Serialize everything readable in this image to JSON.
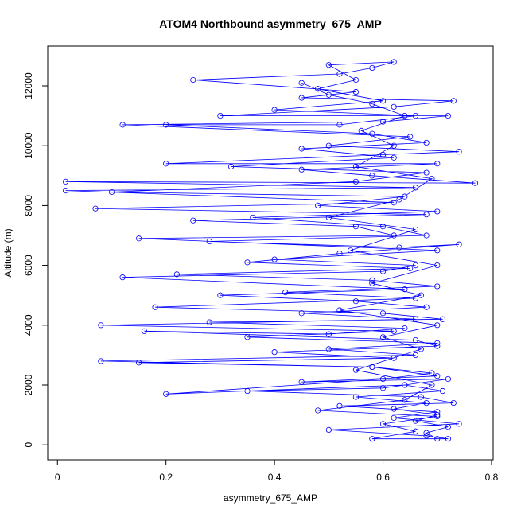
{
  "chart_data": {
    "type": "scatter",
    "title": "ATOM4 Northbound asymmetry_675_AMP",
    "x_label": "asymmetry_675_AMP",
    "y_label": "Altitude (m)",
    "color": "#0000ff",
    "connect": true,
    "xlim": [
      -0.018,
      0.803
    ],
    "xticks": [
      0,
      0.2,
      0.4,
      0.6,
      0.8
    ],
    "ylim": [
      -500,
      13330
    ],
    "yticks": [
      0,
      2000,
      4000,
      6000,
      8000,
      10000,
      12000
    ],
    "x": [
      0.7,
      0.68,
      0.72,
      0.66,
      0.7,
      0.62,
      0.68,
      0.55,
      0.71,
      0.64,
      0.2,
      0.6,
      0.69,
      0.58,
      0.08,
      0.66,
      0.5,
      0.7,
      0.35,
      0.62,
      0.08,
      0.66,
      0.45,
      0.68,
      0.55,
      0.3,
      0.64,
      0.12,
      0.6,
      0.66,
      0.4,
      0.7,
      0.15,
      0.62,
      0.55,
      0.25,
      0.68,
      0.07,
      0.62,
      0.015,
      0.66,
      0.015,
      0.77,
      0.58,
      0.45,
      0.7,
      0.2,
      0.6,
      0.74,
      0.5,
      0.65,
      0.12,
      0.6,
      0.72,
      0.3,
      0.62,
      0.73,
      0.45,
      0.55,
      0.25,
      0.52,
      0.58,
      0.62,
      0.5,
      0.55,
      0.48,
      0.6,
      0.4,
      0.66,
      0.52,
      0.2,
      0.58,
      0.68,
      0.45,
      0.62,
      0.32,
      0.68,
      0.55,
      0.1,
      0.64,
      0.48,
      0.7,
      0.36,
      0.6,
      0.68,
      0.28,
      0.63,
      0.74,
      0.52,
      0.35,
      0.65,
      0.22,
      0.58,
      0.7,
      0.42,
      0.66,
      0.18,
      0.6,
      0.71,
      0.28,
      0.64,
      0.5,
      0.16,
      0.66,
      0.7,
      0.4,
      0.62,
      0.15,
      0.58,
      0.7,
      0.45,
      0.72,
      0.6,
      0.35,
      0.67,
      0.73,
      0.52,
      0.7,
      0.62,
      0.74,
      0.5,
      0.68,
      0.72,
      0.58,
      0.66,
      0.6,
      0.7,
      0.48,
      0.64,
      0.69,
      0.55,
      0.67,
      0.6,
      0.7,
      0.52,
      0.67,
      0.58,
      0.7,
      0.54,
      0.66,
      0.5,
      0.63,
      0.69,
      0.55,
      0.62,
      0.56,
      0.64,
      0.58,
      0.5,
      0.45
    ],
    "values": [
      200,
      400,
      600,
      800,
      1000,
      1200,
      1400,
      1600,
      1800,
      2000,
      1700,
      2200,
      2400,
      2600,
      2800,
      3000,
      3200,
      3400,
      3600,
      3800,
      4000,
      4200,
      4400,
      4600,
      4800,
      5000,
      5200,
      5600,
      5800,
      6000,
      6200,
      6500,
      6900,
      7000,
      7300,
      7500,
      7700,
      7900,
      8100,
      8500,
      8600,
      8800,
      8750,
      9000,
      9200,
      9400,
      9400,
      9700,
      9800,
      10000,
      10300,
      10700,
      10800,
      11000,
      11000,
      11300,
      11500,
      11600,
      11800,
      12200,
      12400,
      12600,
      12800,
      12700,
      12200,
      11900,
      11500,
      11200,
      11000,
      10700,
      10700,
      10400,
      10100,
      9900,
      9600,
      9300,
      9100,
      8800,
      8450,
      8300,
      8000,
      7800,
      7600,
      7300,
      7000,
      6800,
      6600,
      6700,
      6400,
      6100,
      5900,
      5700,
      5500,
      5300,
      5100,
      4900,
      4600,
      4400,
      4200,
      4100,
      3900,
      3700,
      3800,
      3500,
      3300,
      3100,
      2900,
      2750,
      2600,
      2300,
      2100,
      2200,
      1900,
      1800,
      1600,
      1400,
      1300,
      1100,
      900,
      700,
      500,
      300,
      200,
      200,
      450,
      700,
      950,
      1150,
      1500,
      2000,
      2500,
      3200,
      3600,
      4000,
      4500,
      5000,
      5400,
      6000,
      6500,
      7200,
      7600,
      8200,
      8900,
      9300,
      10000,
      10500,
      11000,
      11400,
      11700,
      12100
    ]
  }
}
